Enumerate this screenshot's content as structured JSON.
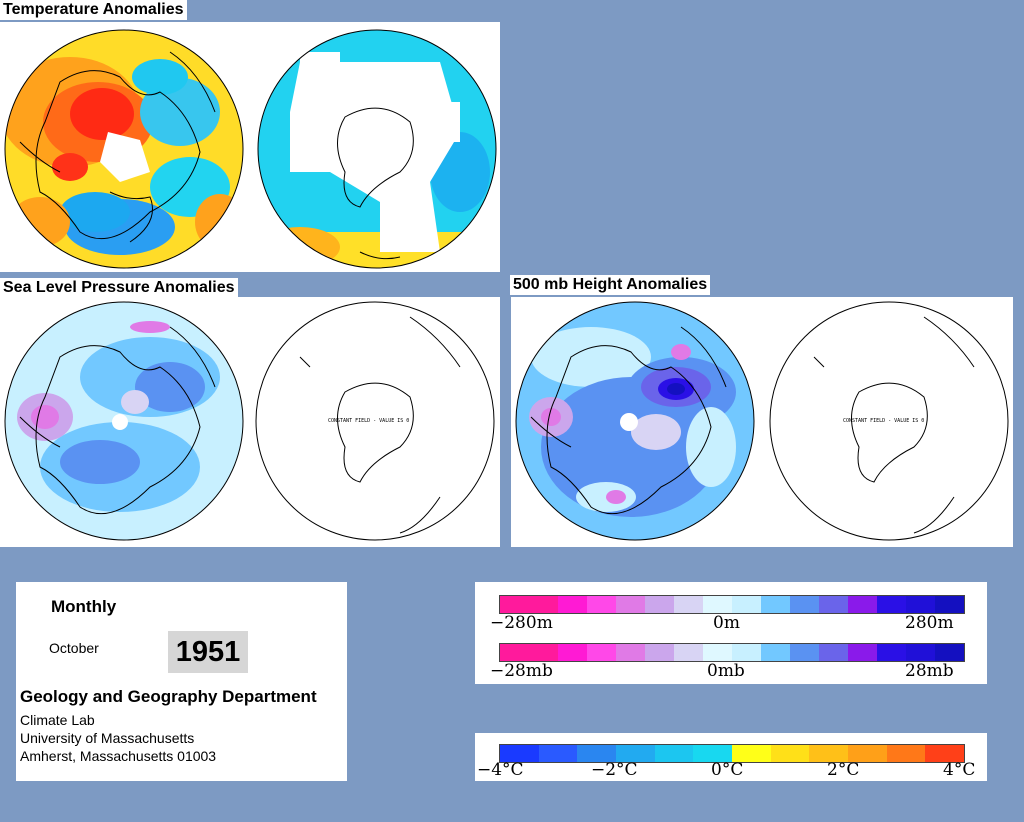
{
  "titles": {
    "temperature": "Temperature Anomalies",
    "slp": "Sea Level Pressure Anomalies",
    "height": "500 mb Height Anomalies"
  },
  "globe_note": "CONSTANT FIELD - VALUE IS 0",
  "info": {
    "period": "Monthly",
    "month": "October",
    "year": "1951",
    "dept": "Geology and Geography Department",
    "lab": "Climate Lab",
    "university": "University of Massachusetts",
    "address": "Amherst, Massachusetts 01003"
  },
  "legend_height": {
    "left": "−280m",
    "mid": "0m",
    "right": "280m",
    "colors": [
      "#ff1a9c",
      "#ff1a9c",
      "#ff1ad4",
      "#ff48e8",
      "#e07ae6",
      "#cba6ec",
      "#d8d4f4",
      "#dff8ff",
      "#c8f0ff",
      "#72c8ff",
      "#5a92f2",
      "#6a64ea",
      "#8a1aea",
      "#2a10e6",
      "#2010d8",
      "#1410c0"
    ]
  },
  "legend_pressure": {
    "left": "−28mb",
    "mid": "0mb",
    "right": "28mb",
    "colors": [
      "#ff1a9c",
      "#ff1a9c",
      "#ff1ad4",
      "#ff48e8",
      "#e07ae6",
      "#cba6ec",
      "#d8d4f4",
      "#dff8ff",
      "#c8f0ff",
      "#72c8ff",
      "#5a92f2",
      "#6a64ea",
      "#8a1aea",
      "#2a10e6",
      "#2010d8",
      "#1410c0"
    ]
  },
  "legend_temp": {
    "labels": [
      "−4°C",
      "−2°C",
      "0°C",
      "2°C",
      "4°C"
    ],
    "colors": [
      "#1a3aff",
      "#2a5aff",
      "#2a86f0",
      "#22aaf0",
      "#1cc6f0",
      "#18d8f0",
      "#ffff18",
      "#ffe018",
      "#ffc018",
      "#ffa018",
      "#ff7818",
      "#ff4018"
    ]
  }
}
